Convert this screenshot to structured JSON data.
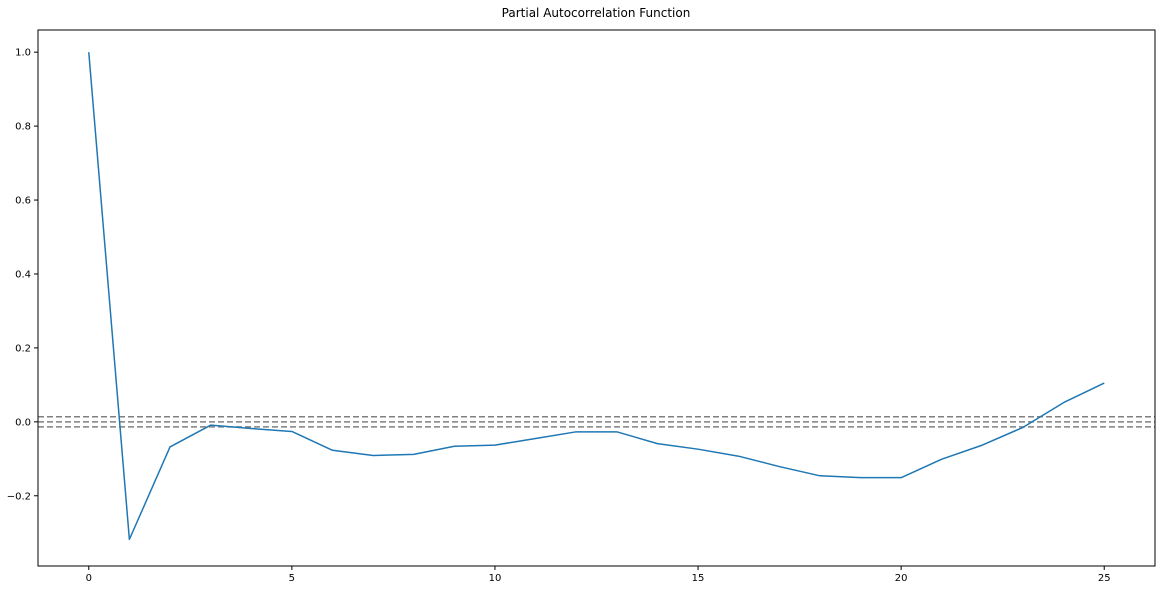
{
  "chart_data": {
    "type": "line",
    "title": "Partial Autocorrelation Function",
    "xlabel": "",
    "ylabel": "",
    "xlim": [
      -1.25,
      26.25
    ],
    "ylim": [
      -0.39,
      1.06
    ],
    "xticks": [
      0,
      5,
      10,
      15,
      20,
      25
    ],
    "xtick_labels": [
      "0",
      "5",
      "10",
      "15",
      "20",
      "25"
    ],
    "yticks": [
      -0.2,
      0.0,
      0.2,
      0.4,
      0.6,
      0.8,
      1.0
    ],
    "ytick_labels": [
      "−0.2",
      "0.0",
      "0.2",
      "0.4",
      "0.6",
      "0.8",
      "1.0"
    ],
    "grid": false,
    "legend": "none",
    "line_color": "#1f77b4",
    "reference_line_color": "#808080",
    "reference_lines": [
      0.0136,
      0.0,
      -0.0136
    ],
    "series": [
      {
        "x": [
          0,
          1,
          2,
          3,
          4,
          5,
          6,
          7,
          8,
          9,
          10,
          11,
          12,
          13,
          14,
          15,
          16,
          17,
          18,
          19,
          20,
          21,
          22,
          23,
          24,
          25
        ],
        "values": [
          1.0,
          -0.318,
          -0.068,
          -0.009,
          -0.018,
          -0.026,
          -0.077,
          -0.091,
          -0.088,
          -0.066,
          -0.063,
          -0.045,
          -0.027,
          -0.027,
          -0.059,
          -0.074,
          -0.093,
          -0.121,
          -0.146,
          -0.151,
          -0.151,
          -0.101,
          -0.063,
          -0.015,
          0.052,
          0.105
        ]
      }
    ]
  }
}
